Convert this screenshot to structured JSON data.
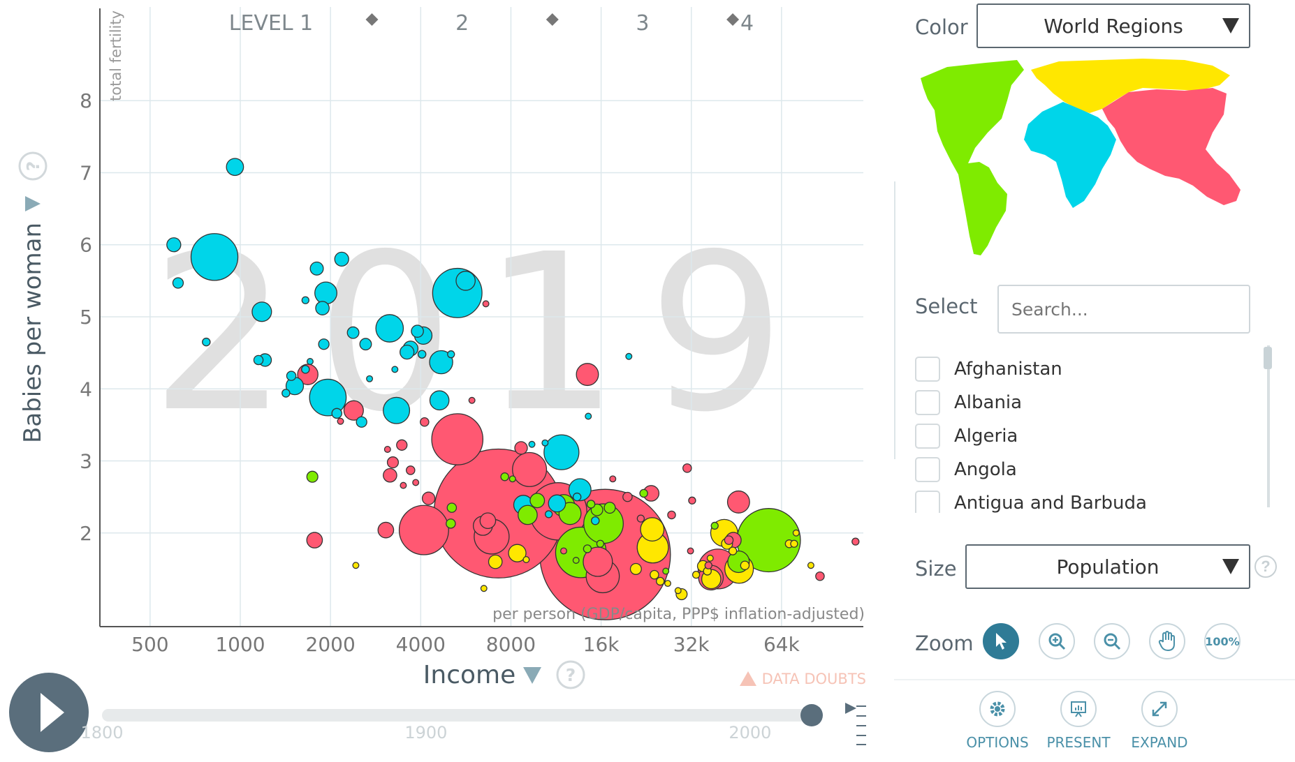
{
  "chart_data": {
    "type": "scatter",
    "year": "2019",
    "xlabel": "Income",
    "xlabel_sub": "per person (GDP/capita, PPP$ inflation-adjusted)",
    "ylabel": "Babies per woman",
    "ylabel_sub": "total fertility",
    "x_scale": "log",
    "xlim": [
      340,
      120000
    ],
    "ylim": [
      0.7,
      9.3
    ],
    "x_ticks": [
      {
        "v": 500,
        "label": "500"
      },
      {
        "v": 1000,
        "label": "1000"
      },
      {
        "v": 2000,
        "label": "2000"
      },
      {
        "v": 4000,
        "label": "4000"
      },
      {
        "v": 8000,
        "label": "8000"
      },
      {
        "v": 16000,
        "label": "16k"
      },
      {
        "v": 32000,
        "label": "32k"
      },
      {
        "v": 64000,
        "label": "64k"
      }
    ],
    "y_ticks": [
      2,
      3,
      4,
      5,
      6,
      7,
      8
    ],
    "levels": [
      "LEVEL 1",
      "2",
      "3",
      "4"
    ],
    "level_boundaries": [
      2750,
      11000,
      44000
    ],
    "grid": true,
    "colors": {
      "asia": "#ff5872",
      "africa": "#00d5e9",
      "americas": "#7feb00",
      "europe": "#ffe700"
    },
    "points": [
      {
        "x": 960,
        "y": 7.08,
        "pop": 24,
        "c": "africa"
      },
      {
        "x": 600,
        "y": 6.0,
        "pop": 16,
        "c": "africa"
      },
      {
        "x": 820,
        "y": 5.83,
        "pop": 180,
        "c": "africa"
      },
      {
        "x": 620,
        "y": 5.47,
        "pop": 9,
        "c": "africa"
      },
      {
        "x": 770,
        "y": 4.65,
        "pop": 5,
        "c": "africa"
      },
      {
        "x": 1180,
        "y": 5.07,
        "pop": 31,
        "c": "africa"
      },
      {
        "x": 1150,
        "y": 4.4,
        "pop": 7,
        "c": "africa"
      },
      {
        "x": 1210,
        "y": 4.4,
        "pop": 13,
        "c": "africa"
      },
      {
        "x": 1800,
        "y": 5.67,
        "pop": 14,
        "c": "africa"
      },
      {
        "x": 2180,
        "y": 5.8,
        "pop": 16,
        "c": "africa"
      },
      {
        "x": 1930,
        "y": 5.33,
        "pop": 40,
        "c": "africa"
      },
      {
        "x": 1650,
        "y": 5.23,
        "pop": 4,
        "c": "africa"
      },
      {
        "x": 1880,
        "y": 5.12,
        "pop": 15,
        "c": "africa"
      },
      {
        "x": 2380,
        "y": 4.78,
        "pop": 11,
        "c": "africa"
      },
      {
        "x": 1900,
        "y": 4.62,
        "pop": 9,
        "c": "africa"
      },
      {
        "x": 2620,
        "y": 4.62,
        "pop": 11,
        "c": "africa"
      },
      {
        "x": 1710,
        "y": 4.38,
        "pop": 3,
        "c": "africa"
      },
      {
        "x": 1650,
        "y": 4.27,
        "pop": 5,
        "c": "africa"
      },
      {
        "x": 1480,
        "y": 4.18,
        "pop": 7,
        "c": "africa"
      },
      {
        "x": 1520,
        "y": 4.04,
        "pop": 25,
        "c": "africa"
      },
      {
        "x": 1420,
        "y": 3.94,
        "pop": 5,
        "c": "africa"
      },
      {
        "x": 1960,
        "y": 3.88,
        "pop": 110,
        "c": "africa"
      },
      {
        "x": 2100,
        "y": 3.66,
        "pop": 8,
        "c": "africa"
      },
      {
        "x": 2540,
        "y": 3.54,
        "pop": 9,
        "c": "africa"
      },
      {
        "x": 2700,
        "y": 4.14,
        "pop": 3,
        "c": "africa"
      },
      {
        "x": 3150,
        "y": 4.84,
        "pop": 62,
        "c": "africa"
      },
      {
        "x": 3600,
        "y": 4.51,
        "pop": 16,
        "c": "africa"
      },
      {
        "x": 3700,
        "y": 4.56,
        "pop": 18,
        "c": "africa"
      },
      {
        "x": 3900,
        "y": 4.8,
        "pop": 12,
        "c": "africa"
      },
      {
        "x": 4080,
        "y": 4.74,
        "pop": 25,
        "c": "africa"
      },
      {
        "x": 4040,
        "y": 4.48,
        "pop": 5,
        "c": "africa"
      },
      {
        "x": 3280,
        "y": 4.27,
        "pop": 3,
        "c": "africa"
      },
      {
        "x": 4680,
        "y": 4.37,
        "pop": 44,
        "c": "africa"
      },
      {
        "x": 3320,
        "y": 3.7,
        "pop": 57,
        "c": "africa"
      },
      {
        "x": 5050,
        "y": 4.48,
        "pop": 4,
        "c": "africa"
      },
      {
        "x": 4620,
        "y": 3.84,
        "pop": 30,
        "c": "africa"
      },
      {
        "x": 5300,
        "y": 5.33,
        "pop": 200,
        "c": "africa"
      },
      {
        "x": 5650,
        "y": 5.5,
        "pop": 30,
        "c": "africa"
      },
      {
        "x": 14500,
        "y": 3.62,
        "pop": 3,
        "c": "africa"
      },
      {
        "x": 19800,
        "y": 4.45,
        "pop": 3,
        "c": "africa"
      },
      {
        "x": 11800,
        "y": 3.12,
        "pop": 100,
        "c": "africa"
      },
      {
        "x": 13600,
        "y": 2.6,
        "pop": 40,
        "c": "africa"
      },
      {
        "x": 8800,
        "y": 2.39,
        "pop": 30,
        "c": "africa"
      },
      {
        "x": 11400,
        "y": 2.41,
        "pop": 24,
        "c": "africa"
      },
      {
        "x": 15300,
        "y": 2.17,
        "pop": 5,
        "c": "africa"
      },
      {
        "x": 9400,
        "y": 3.23,
        "pop": 3,
        "c": "africa"
      },
      {
        "x": 10400,
        "y": 3.25,
        "pop": 3,
        "c": "africa"
      },
      {
        "x": 13300,
        "y": 2.5,
        "pop": 5,
        "c": "africa"
      },
      {
        "x": 10700,
        "y": 2.26,
        "pop": 4,
        "c": "africa"
      },
      {
        "x": 1680,
        "y": 4.2,
        "pop": 34,
        "c": "asia"
      },
      {
        "x": 2390,
        "y": 3.7,
        "pop": 31,
        "c": "asia"
      },
      {
        "x": 2160,
        "y": 3.55,
        "pop": 3,
        "c": "asia"
      },
      {
        "x": 3460,
        "y": 3.22,
        "pop": 9,
        "c": "asia"
      },
      {
        "x": 3100,
        "y": 3.16,
        "pop": 3,
        "c": "asia"
      },
      {
        "x": 3230,
        "y": 2.98,
        "pop": 10,
        "c": "asia"
      },
      {
        "x": 3500,
        "y": 2.66,
        "pop": 3,
        "c": "asia"
      },
      {
        "x": 3160,
        "y": 2.8,
        "pop": 15,
        "c": "asia"
      },
      {
        "x": 3700,
        "y": 2.87,
        "pop": 6,
        "c": "asia"
      },
      {
        "x": 3850,
        "y": 2.7,
        "pop": 3,
        "c": "asia"
      },
      {
        "x": 4120,
        "y": 3.54,
        "pop": 6,
        "c": "asia"
      },
      {
        "x": 5300,
        "y": 3.3,
        "pop": 215,
        "c": "asia"
      },
      {
        "x": 5930,
        "y": 3.84,
        "pop": 3,
        "c": "asia"
      },
      {
        "x": 4250,
        "y": 2.48,
        "pop": 13,
        "c": "asia"
      },
      {
        "x": 4100,
        "y": 2.04,
        "pop": 200,
        "c": "asia"
      },
      {
        "x": 3060,
        "y": 2.04,
        "pop": 20,
        "c": "asia"
      },
      {
        "x": 1770,
        "y": 1.9,
        "pop": 20,
        "c": "asia"
      },
      {
        "x": 6600,
        "y": 5.18,
        "pop": 3,
        "c": "asia"
      },
      {
        "x": 9230,
        "y": 2.88,
        "pop": 95,
        "c": "asia"
      },
      {
        "x": 8650,
        "y": 3.18,
        "pop": 13,
        "c": "asia"
      },
      {
        "x": 7270,
        "y": 2.27,
        "pop": 1366,
        "c": "asia"
      },
      {
        "x": 6700,
        "y": 2.17,
        "pop": 20,
        "c": "asia"
      },
      {
        "x": 6900,
        "y": 1.95,
        "pop": 100,
        "c": "asia"
      },
      {
        "x": 6450,
        "y": 2.1,
        "pop": 30,
        "c": "asia"
      },
      {
        "x": 11500,
        "y": 2.3,
        "pop": 270,
        "c": "asia"
      },
      {
        "x": 12000,
        "y": 1.75,
        "pop": 3,
        "c": "asia"
      },
      {
        "x": 14400,
        "y": 4.2,
        "pop": 40,
        "c": "asia"
      },
      {
        "x": 16500,
        "y": 1.7,
        "pop": 1400,
        "c": "asia"
      },
      {
        "x": 15600,
        "y": 1.6,
        "pop": 70,
        "c": "asia"
      },
      {
        "x": 16200,
        "y": 1.4,
        "pop": 90,
        "c": "asia"
      },
      {
        "x": 17500,
        "y": 2.75,
        "pop": 3,
        "c": "asia"
      },
      {
        "x": 19600,
        "y": 2.5,
        "pop": 7,
        "c": "asia"
      },
      {
        "x": 23500,
        "y": 2.55,
        "pop": 20,
        "c": "asia"
      },
      {
        "x": 27500,
        "y": 2.25,
        "pop": 5,
        "c": "asia"
      },
      {
        "x": 21700,
        "y": 2.2,
        "pop": 4,
        "c": "asia"
      },
      {
        "x": 31000,
        "y": 2.9,
        "pop": 6,
        "c": "asia"
      },
      {
        "x": 32200,
        "y": 2.45,
        "pop": 4,
        "c": "asia"
      },
      {
        "x": 46000,
        "y": 2.43,
        "pop": 40,
        "c": "asia"
      },
      {
        "x": 39300,
        "y": 1.5,
        "pop": 130,
        "c": "asia"
      },
      {
        "x": 37200,
        "y": 1.38,
        "pop": 50,
        "c": "asia"
      },
      {
        "x": 42700,
        "y": 1.9,
        "pop": 6,
        "c": "asia"
      },
      {
        "x": 44200,
        "y": 1.9,
        "pop": 20,
        "c": "asia"
      },
      {
        "x": 31800,
        "y": 1.75,
        "pop": 3,
        "c": "asia"
      },
      {
        "x": 36500,
        "y": 1.55,
        "pop": 4,
        "c": "asia"
      },
      {
        "x": 86000,
        "y": 1.4,
        "pop": 6,
        "c": "asia"
      },
      {
        "x": 113000,
        "y": 1.88,
        "pop": 4,
        "c": "asia"
      },
      {
        "x": 1740,
        "y": 2.78,
        "pop": 10,
        "c": "americas"
      },
      {
        "x": 5080,
        "y": 2.35,
        "pop": 7,
        "c": "americas"
      },
      {
        "x": 5040,
        "y": 2.13,
        "pop": 7,
        "c": "americas"
      },
      {
        "x": 7630,
        "y": 2.78,
        "pop": 5,
        "c": "americas"
      },
      {
        "x": 8100,
        "y": 2.75,
        "pop": 3,
        "c": "americas"
      },
      {
        "x": 9100,
        "y": 2.25,
        "pop": 30,
        "c": "americas"
      },
      {
        "x": 9800,
        "y": 2.45,
        "pop": 17,
        "c": "americas"
      },
      {
        "x": 12000,
        "y": 2.38,
        "pop": 40,
        "c": "americas"
      },
      {
        "x": 12600,
        "y": 2.27,
        "pop": 40,
        "c": "americas"
      },
      {
        "x": 13700,
        "y": 1.73,
        "pop": 210,
        "c": "americas"
      },
      {
        "x": 14400,
        "y": 1.78,
        "pop": 5,
        "c": "americas"
      },
      {
        "x": 15500,
        "y": 2.32,
        "pop": 11,
        "c": "americas"
      },
      {
        "x": 16300,
        "y": 2.13,
        "pop": 128,
        "c": "americas"
      },
      {
        "x": 17100,
        "y": 2.35,
        "pop": 10,
        "c": "americas"
      },
      {
        "x": 14800,
        "y": 2.4,
        "pop": 5,
        "c": "americas"
      },
      {
        "x": 15900,
        "y": 1.85,
        "pop": 4,
        "c": "americas"
      },
      {
        "x": 13200,
        "y": 1.62,
        "pop": 3,
        "c": "americas"
      },
      {
        "x": 22200,
        "y": 2.55,
        "pop": 5,
        "c": "americas"
      },
      {
        "x": 26300,
        "y": 1.47,
        "pop": 3,
        "c": "americas"
      },
      {
        "x": 38300,
        "y": 2.1,
        "pop": 4,
        "c": "americas"
      },
      {
        "x": 46000,
        "y": 1.6,
        "pop": 38,
        "c": "americas"
      },
      {
        "x": 58000,
        "y": 1.9,
        "pop": 330,
        "c": "americas"
      },
      {
        "x": 8400,
        "y": 1.72,
        "pop": 25,
        "c": "europe"
      },
      {
        "x": 9000,
        "y": 1.63,
        "pop": 3,
        "c": "europe"
      },
      {
        "x": 20900,
        "y": 1.5,
        "pop": 10,
        "c": "europe"
      },
      {
        "x": 23700,
        "y": 2.05,
        "pop": 45,
        "c": "europe"
      },
      {
        "x": 23800,
        "y": 1.8,
        "pop": 80,
        "c": "europe"
      },
      {
        "x": 24100,
        "y": 1.42,
        "pop": 6,
        "c": "europe"
      },
      {
        "x": 25200,
        "y": 1.33,
        "pop": 5,
        "c": "europe"
      },
      {
        "x": 26700,
        "y": 1.3,
        "pop": 3,
        "c": "europe"
      },
      {
        "x": 28900,
        "y": 1.2,
        "pop": 3,
        "c": "europe"
      },
      {
        "x": 29700,
        "y": 1.15,
        "pop": 10,
        "c": "europe"
      },
      {
        "x": 33200,
        "y": 1.42,
        "pop": 4,
        "c": "europe"
      },
      {
        "x": 35000,
        "y": 1.54,
        "pop": 10,
        "c": "europe"
      },
      {
        "x": 36200,
        "y": 1.47,
        "pop": 5,
        "c": "europe"
      },
      {
        "x": 37000,
        "y": 1.65,
        "pop": 3,
        "c": "europe"
      },
      {
        "x": 37300,
        "y": 1.36,
        "pop": 30,
        "c": "europe"
      },
      {
        "x": 41200,
        "y": 2.0,
        "pop": 60,
        "c": "europe"
      },
      {
        "x": 42100,
        "y": 1.85,
        "pop": 10,
        "c": "europe"
      },
      {
        "x": 44000,
        "y": 1.75,
        "pop": 5,
        "c": "europe"
      },
      {
        "x": 46200,
        "y": 1.5,
        "pop": 67,
        "c": "europe"
      },
      {
        "x": 48300,
        "y": 1.55,
        "pop": 6,
        "c": "europe"
      },
      {
        "x": 67900,
        "y": 1.85,
        "pop": 5,
        "c": "europe"
      },
      {
        "x": 71600,
        "y": 2.0,
        "pop": 3,
        "c": "europe"
      },
      {
        "x": 80200,
        "y": 1.55,
        "pop": 3,
        "c": "europe"
      },
      {
        "x": 70500,
        "y": 1.85,
        "pop": 4,
        "c": "europe"
      },
      {
        "x": 2430,
        "y": 1.55,
        "pop": 3,
        "c": "europe"
      },
      {
        "x": 6500,
        "y": 1.23,
        "pop": 3,
        "c": "europe"
      },
      {
        "x": 7100,
        "y": 1.6,
        "pop": 15,
        "c": "europe"
      }
    ]
  },
  "ui": {
    "color_label": "Color",
    "color_value": "World Regions",
    "select_label": "Select",
    "search_placeholder": "Search...",
    "countries": [
      "Afghanistan",
      "Albania",
      "Algeria",
      "Angola",
      "Antigua and Barbuda"
    ],
    "size_label": "Size",
    "size_value": "Population",
    "zoom_label": "Zoom",
    "zoom_percent": "100%",
    "options_label": "OPTIONS",
    "present_label": "PRESENT",
    "expand_label": "EXPAND",
    "data_doubts": "DATA DOUBTS",
    "timeline_ticks": [
      "1800",
      "1900",
      "2000"
    ],
    "timeline_range": [
      1800,
      2019
    ],
    "timeline_current": 2019,
    "help_glyph": "?"
  }
}
